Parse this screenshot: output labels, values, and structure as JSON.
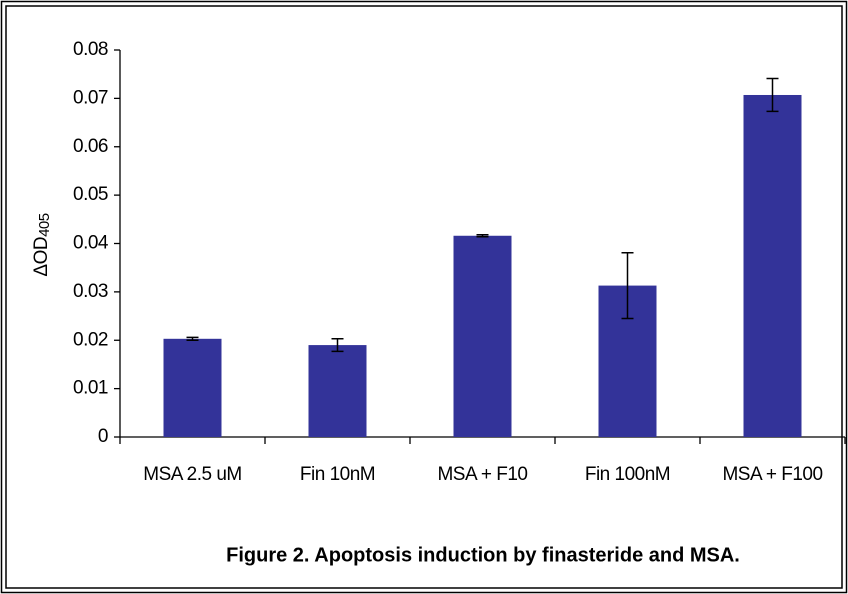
{
  "chart_data": {
    "type": "bar",
    "title": "Figure 2.  Apoptosis induction by finasteride and MSA.",
    "ylabel": "ΔOD",
    "ylabel_subscript": "405",
    "categories": [
      "MSA 2.5 uM",
      "Fin 10nM",
      "MSA + F10",
      "Fin 100nM",
      "MSA + F100"
    ],
    "values": [
      0.0203,
      0.019,
      0.0416,
      0.0313,
      0.0707
    ],
    "errors": [
      0.0003,
      0.0013,
      0.0002,
      0.0068,
      0.0034
    ],
    "color": "#333399",
    "ylim": [
      0,
      0.08
    ],
    "yticks": [
      0,
      0.01,
      0.02,
      0.03,
      0.04,
      0.05,
      0.06,
      0.07,
      0.08
    ],
    "grid": false
  }
}
